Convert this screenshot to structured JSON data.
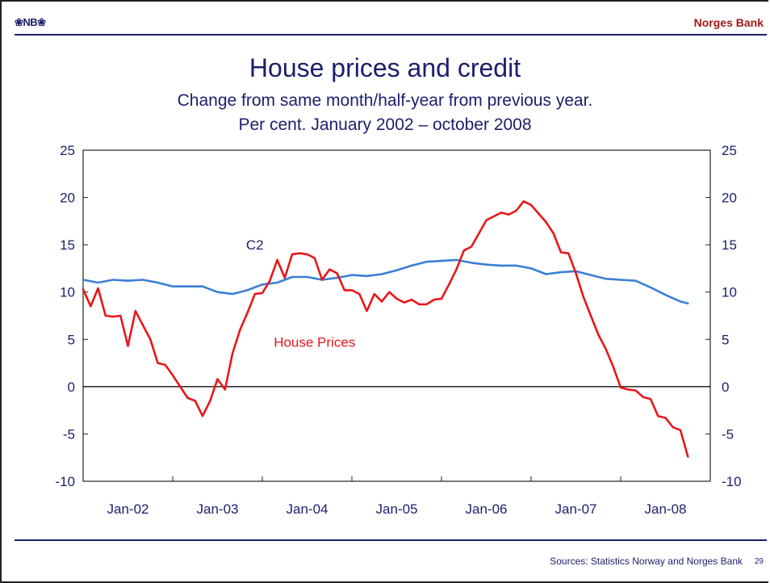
{
  "header": {
    "logo": "❀NB❀",
    "bank": "Norges Bank"
  },
  "footer": {
    "sources": "Sources: Statistics Norway and Norges Bank",
    "page": "29"
  },
  "chart_data": {
    "type": "line",
    "title": "House prices and credit",
    "subtitle": [
      "Change from same month/half-year from previous year.",
      "Per cent. January 2002 – october 2008"
    ],
    "x_tick_labels": [
      "Jan-02",
      "Jan-03",
      "Jan-04",
      "Jan-05",
      "Jan-06",
      "Jan-07",
      "Jan-08"
    ],
    "xlim": [
      "2002-01",
      "2008-12"
    ],
    "ylim": [
      -10,
      25
    ],
    "y_ticks": [
      -10,
      -5,
      0,
      5,
      10,
      15,
      20,
      25
    ],
    "y_ticks_right": [
      -10,
      -5,
      0,
      5,
      10,
      15,
      20,
      25
    ],
    "zero_line": true,
    "series": [
      {
        "name": "C2",
        "color": "#3a7fd5",
        "points": [
          [
            "2002-01",
            11.3
          ],
          [
            "2002-03",
            11.0
          ],
          [
            "2002-05",
            11.3
          ],
          [
            "2002-07",
            11.2
          ],
          [
            "2002-09",
            11.3
          ],
          [
            "2002-11",
            11.0
          ],
          [
            "2003-01",
            10.6
          ],
          [
            "2003-03",
            10.6
          ],
          [
            "2003-05",
            10.6
          ],
          [
            "2003-07",
            10.0
          ],
          [
            "2003-09",
            9.8
          ],
          [
            "2003-11",
            10.2
          ],
          [
            "2004-01",
            10.8
          ],
          [
            "2004-03",
            11.0
          ],
          [
            "2004-05",
            11.6
          ],
          [
            "2004-07",
            11.6
          ],
          [
            "2004-09",
            11.3
          ],
          [
            "2004-11",
            11.5
          ],
          [
            "2005-01",
            11.8
          ],
          [
            "2005-03",
            11.7
          ],
          [
            "2005-05",
            11.9
          ],
          [
            "2005-07",
            12.3
          ],
          [
            "2005-09",
            12.8
          ],
          [
            "2005-11",
            13.2
          ],
          [
            "2006-01",
            13.3
          ],
          [
            "2006-03",
            13.4
          ],
          [
            "2006-05",
            13.1
          ],
          [
            "2006-07",
            12.9
          ],
          [
            "2006-09",
            12.8
          ],
          [
            "2006-11",
            12.8
          ],
          [
            "2007-01",
            12.5
          ],
          [
            "2007-03",
            11.9
          ],
          [
            "2007-05",
            12.1
          ],
          [
            "2007-07",
            12.2
          ],
          [
            "2007-09",
            11.8
          ],
          [
            "2007-11",
            11.4
          ],
          [
            "2008-01",
            11.3
          ],
          [
            "2008-03",
            11.2
          ],
          [
            "2008-05",
            10.5
          ],
          [
            "2008-07",
            9.7
          ],
          [
            "2008-09",
            9.0
          ],
          [
            "2008-10",
            8.8
          ]
        ]
      },
      {
        "name": "House Prices",
        "color": "#e8161b",
        "points": [
          [
            "2002-01",
            10.3
          ],
          [
            "2002-02",
            8.5
          ],
          [
            "2002-03",
            10.4
          ],
          [
            "2002-04",
            7.5
          ],
          [
            "2002-05",
            7.4
          ],
          [
            "2002-06",
            7.5
          ],
          [
            "2002-07",
            4.3
          ],
          [
            "2002-08",
            8.0
          ],
          [
            "2002-09",
            6.5
          ],
          [
            "2002-10",
            5.0
          ],
          [
            "2002-11",
            2.5
          ],
          [
            "2002-12",
            2.3
          ],
          [
            "2003-01",
            1.2
          ],
          [
            "2003-02",
            0.0
          ],
          [
            "2003-03",
            -1.2
          ],
          [
            "2003-04",
            -1.5
          ],
          [
            "2003-05",
            -3.1
          ],
          [
            "2003-06",
            -1.5
          ],
          [
            "2003-07",
            0.8
          ],
          [
            "2003-08",
            -0.3
          ],
          [
            "2003-09",
            3.5
          ],
          [
            "2003-10",
            6.0
          ],
          [
            "2003-11",
            7.8
          ],
          [
            "2003-12",
            9.8
          ],
          [
            "2004-01",
            9.9
          ],
          [
            "2004-02",
            11.2
          ],
          [
            "2004-03",
            13.4
          ],
          [
            "2004-04",
            11.5
          ],
          [
            "2004-05",
            14.0
          ],
          [
            "2004-06",
            14.1
          ],
          [
            "2004-07",
            14.0
          ],
          [
            "2004-08",
            13.6
          ],
          [
            "2004-09",
            11.3
          ],
          [
            "2004-10",
            12.4
          ],
          [
            "2004-11",
            12.0
          ],
          [
            "2004-12",
            10.2
          ],
          [
            "2005-01",
            10.2
          ],
          [
            "2005-02",
            9.8
          ],
          [
            "2005-03",
            8.0
          ],
          [
            "2005-04",
            9.8
          ],
          [
            "2005-05",
            9.0
          ],
          [
            "2005-06",
            10.0
          ],
          [
            "2005-07",
            9.3
          ],
          [
            "2005-08",
            8.9
          ],
          [
            "2005-09",
            9.2
          ],
          [
            "2005-10",
            8.7
          ],
          [
            "2005-11",
            8.7
          ],
          [
            "2005-12",
            9.2
          ],
          [
            "2006-01",
            9.3
          ],
          [
            "2006-02",
            10.8
          ],
          [
            "2006-03",
            12.4
          ],
          [
            "2006-04",
            14.4
          ],
          [
            "2006-05",
            14.8
          ],
          [
            "2006-06",
            16.2
          ],
          [
            "2006-07",
            17.6
          ],
          [
            "2006-08",
            18.0
          ],
          [
            "2006-09",
            18.4
          ],
          [
            "2006-10",
            18.2
          ],
          [
            "2006-11",
            18.6
          ],
          [
            "2006-12",
            19.6
          ],
          [
            "2007-01",
            19.2
          ],
          [
            "2007-02",
            18.3
          ],
          [
            "2007-03",
            17.4
          ],
          [
            "2007-04",
            16.2
          ],
          [
            "2007-05",
            14.2
          ],
          [
            "2007-06",
            14.1
          ],
          [
            "2007-07",
            12.0
          ],
          [
            "2007-08",
            9.5
          ],
          [
            "2007-09",
            7.5
          ],
          [
            "2007-10",
            5.5
          ],
          [
            "2007-11",
            4.0
          ],
          [
            "2007-12",
            2.1
          ],
          [
            "2008-01",
            -0.1
          ],
          [
            "2008-02",
            -0.3
          ],
          [
            "2008-03",
            -0.4
          ],
          [
            "2008-04",
            -1.1
          ],
          [
            "2008-05",
            -1.3
          ],
          [
            "2008-06",
            -3.1
          ],
          [
            "2008-07",
            -3.3
          ],
          [
            "2008-08",
            -4.3
          ],
          [
            "2008-09",
            -4.6
          ],
          [
            "2008-10",
            -7.4
          ]
        ]
      }
    ],
    "annotations": [
      {
        "text": "C2",
        "x": "2003-12",
        "y": 14.5,
        "color": "#1a1f6b"
      },
      {
        "text": "House Prices",
        "x": "2004-08",
        "y": 4.2,
        "color": "#e8161b"
      }
    ]
  }
}
